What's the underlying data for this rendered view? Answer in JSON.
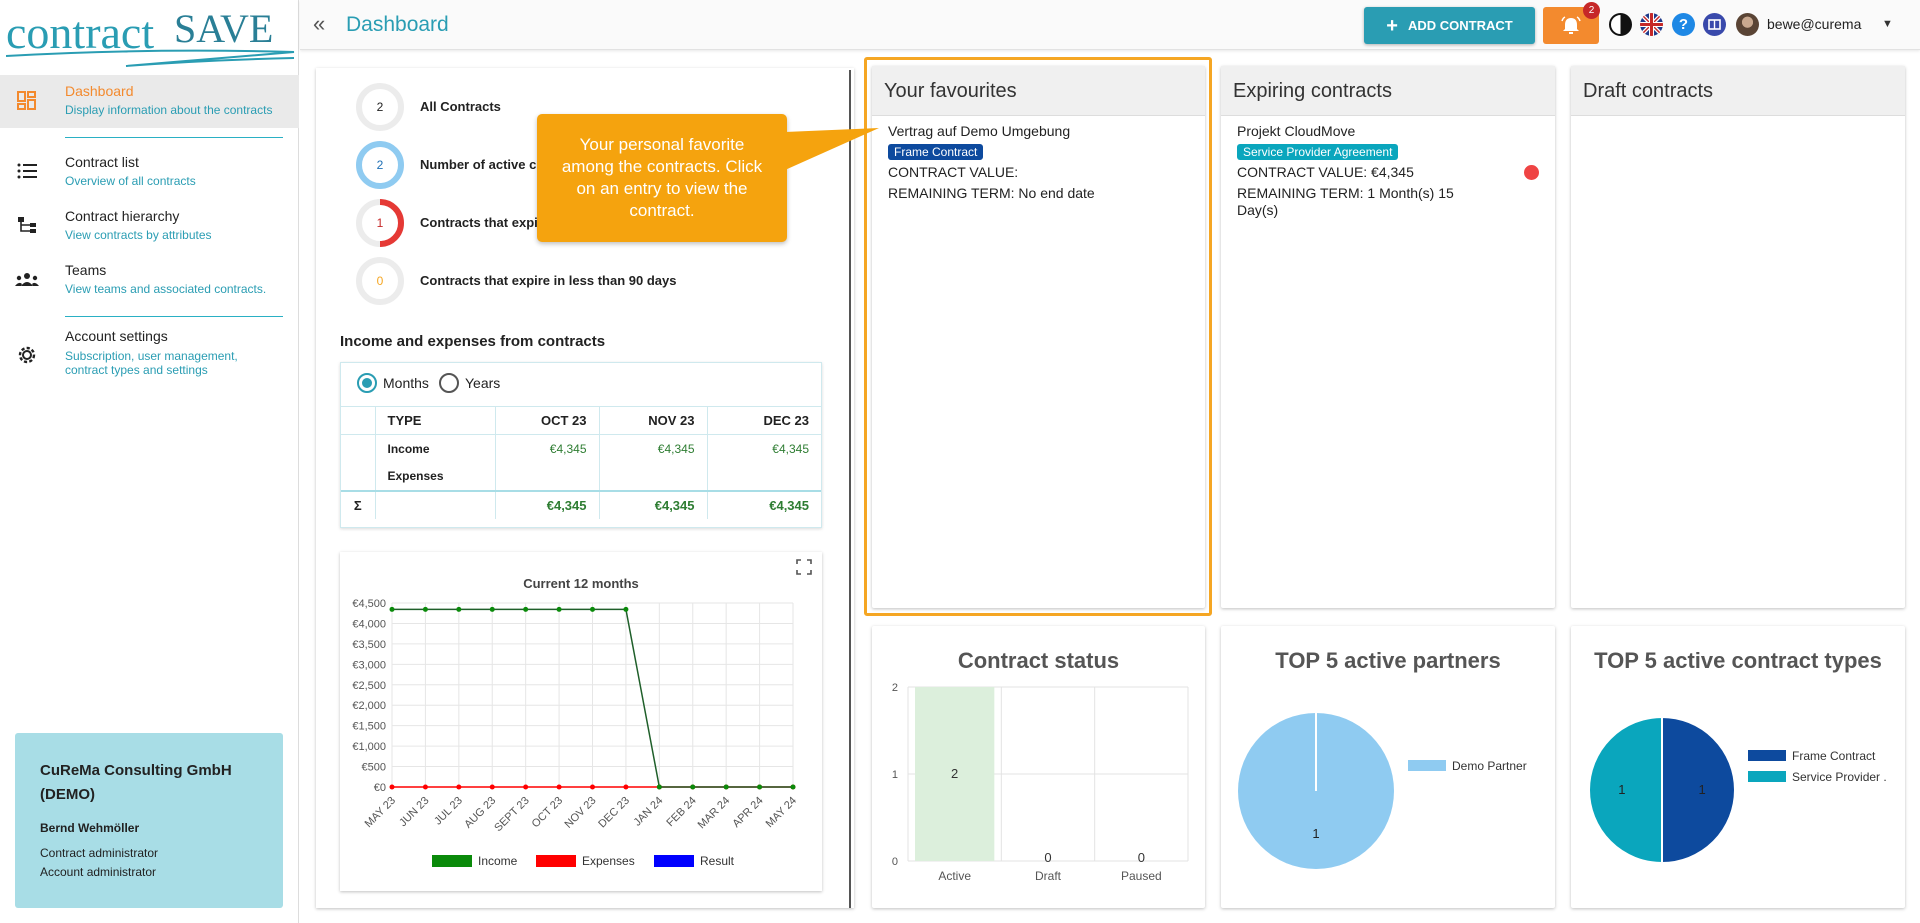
{
  "brand": {
    "logo_text_1": "contract",
    "logo_text_2": "SAVE"
  },
  "sidebar": {
    "items": [
      {
        "title": "Dashboard",
        "subtitle": "Display information about the contracts"
      },
      {
        "title": "Contract list",
        "subtitle": "Overview of all contracts"
      },
      {
        "title": "Contract hierarchy",
        "subtitle": "View contracts by attributes"
      },
      {
        "title": "Teams",
        "subtitle": "View teams and associated contracts."
      },
      {
        "title": "Account settings",
        "subtitle_1": "Subscription, user management,",
        "subtitle_2": "contract types and settings"
      }
    ],
    "company": {
      "name_1": "CuReMa Consulting GmbH",
      "name_2": "(DEMO)",
      "user": "Bernd Wehmöller",
      "role_1": "Contract administrator",
      "role_2": "Account administrator"
    }
  },
  "header": {
    "title": "Dashboard",
    "collapse": "«",
    "add_contract": "ADD CONTRACT",
    "plus": "+",
    "notifications": "2",
    "user": "bewe@curema",
    "caret": "▼"
  },
  "stats": [
    {
      "value": "2",
      "label": "All Contracts"
    },
    {
      "value": "2",
      "label": "Number of active c"
    },
    {
      "value": "1",
      "label": "Contracts that expi"
    },
    {
      "value": "0",
      "label": "Contracts that expire in less than 90 days"
    }
  ],
  "income": {
    "title": "Income and expenses from contracts",
    "radio_months": "Months",
    "radio_years": "Years",
    "columns": [
      "TYPE",
      "OCT 23",
      "NOV 23",
      "DEC 23"
    ],
    "rows": [
      {
        "type": "Income",
        "values": [
          "€4,345",
          "€4,345",
          "€4,345"
        ]
      },
      {
        "type": "Expenses",
        "values": [
          "",
          "",
          ""
        ]
      }
    ],
    "sum_symbol": "Σ",
    "sum": [
      "€4,345",
      "€4,345",
      "€4,345"
    ]
  },
  "chart_data": [
    {
      "type": "line",
      "title": "Current 12 months",
      "categories": [
        "MAY 23",
        "JUN 23",
        "JUL 23",
        "AUG 23",
        "SEPT 23",
        "OCT 23",
        "NOV 23",
        "DEC 23",
        "JAN 24",
        "FEB 24",
        "MAR 24",
        "APR 24",
        "MAY 24"
      ],
      "y_ticks": [
        "€0",
        "€500",
        "€1,000",
        "€1,500",
        "€2,000",
        "€2,500",
        "€3,000",
        "€3,500",
        "€4,000",
        "€4,500"
      ],
      "ylim": [
        0,
        4500
      ],
      "series": [
        {
          "name": "Income",
          "color": "#0a8a0a",
          "values": [
            4345,
            4345,
            4345,
            4345,
            4345,
            4345,
            4345,
            4345,
            0,
            0,
            0,
            0,
            0
          ]
        },
        {
          "name": "Expenses",
          "color": "#ff0000",
          "values": [
            0,
            0,
            0,
            0,
            0,
            0,
            0,
            0,
            0,
            0,
            0,
            0,
            0
          ]
        },
        {
          "name": "Result",
          "color": "#0000ff",
          "values": [
            4345,
            4345,
            4345,
            4345,
            4345,
            4345,
            4345,
            4345,
            0,
            0,
            0,
            0,
            0
          ]
        }
      ]
    },
    {
      "type": "bar",
      "title": "Contract status",
      "categories": [
        "Active",
        "Draft",
        "Paused"
      ],
      "values": [
        2,
        0,
        0
      ],
      "y_ticks": [
        "0",
        "1",
        "2"
      ],
      "ylim": [
        0,
        2
      ]
    },
    {
      "type": "pie",
      "title": "TOP 5 active partners",
      "labels": [
        "Demo Partner"
      ],
      "values": [
        1
      ],
      "colors": [
        "#8fcbf1"
      ]
    },
    {
      "type": "pie",
      "title": "TOP 5 active contract types",
      "labels": [
        "Frame Contract",
        "Service Provider ."
      ],
      "values": [
        1,
        1
      ],
      "colors": [
        "#0d4a9e",
        "#0aa6bd"
      ]
    }
  ],
  "favourites": {
    "title": "Your favourites",
    "entry": {
      "name": "Vertrag auf Demo Umgebung",
      "badge": "Frame Contract",
      "value": "CONTRACT VALUE:",
      "term": "REMAINING TERM: No end date"
    }
  },
  "expiring": {
    "title": "Expiring contracts",
    "entry": {
      "name": "Projekt CloudMove",
      "badge": "Service Provider Agreement",
      "value": "CONTRACT VALUE: €4,345",
      "term_1": "REMAINING TERM: 1 Month(s) 15",
      "term_2": "Day(s)"
    }
  },
  "drafts": {
    "title": "Draft contracts"
  },
  "tooltip": "Your personal favorite among the contracts. Click on an entry to view the contract.",
  "colors": {
    "accent": "#2a9db3",
    "orange": "#f38a2e",
    "tooltip": "#f5a30e"
  }
}
